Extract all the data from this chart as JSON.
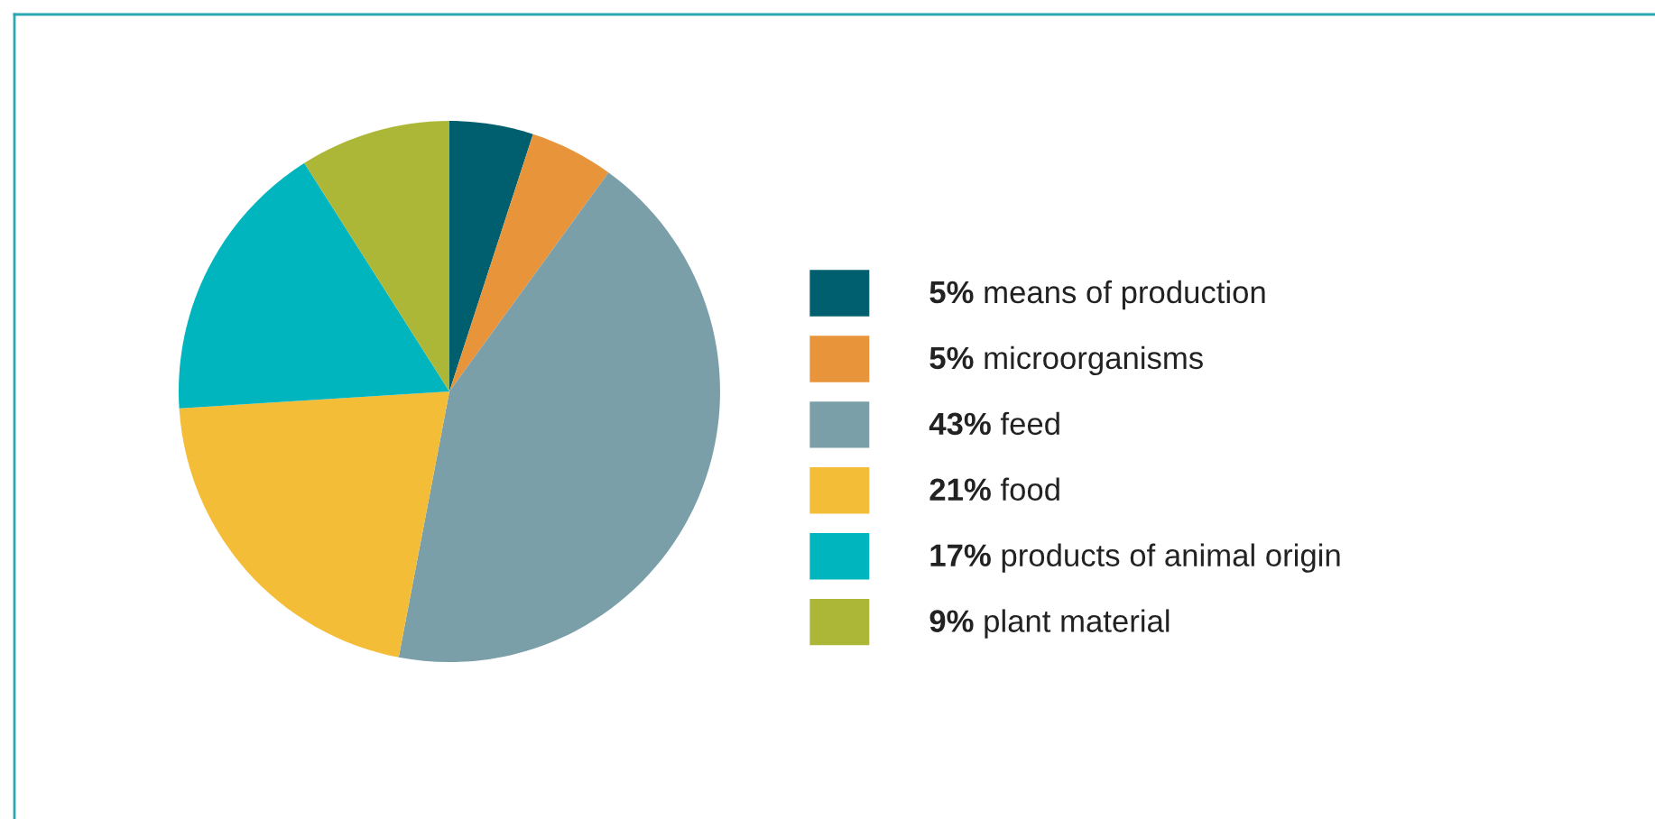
{
  "chart_data": {
    "type": "pie",
    "categories": [
      "means of production",
      "microorganisms",
      "feed",
      "food",
      "products of animal origin",
      "plant material"
    ],
    "values": [
      5,
      5,
      43,
      21,
      17,
      9
    ],
    "value_labels": [
      "5%",
      "5%",
      "43%",
      "21%",
      "17%",
      "9%"
    ],
    "colors": [
      "#005f6e",
      "#e8943a",
      "#7a9fa9",
      "#f3bd37",
      "#00b5bd",
      "#adb737"
    ],
    "legend": "right"
  }
}
